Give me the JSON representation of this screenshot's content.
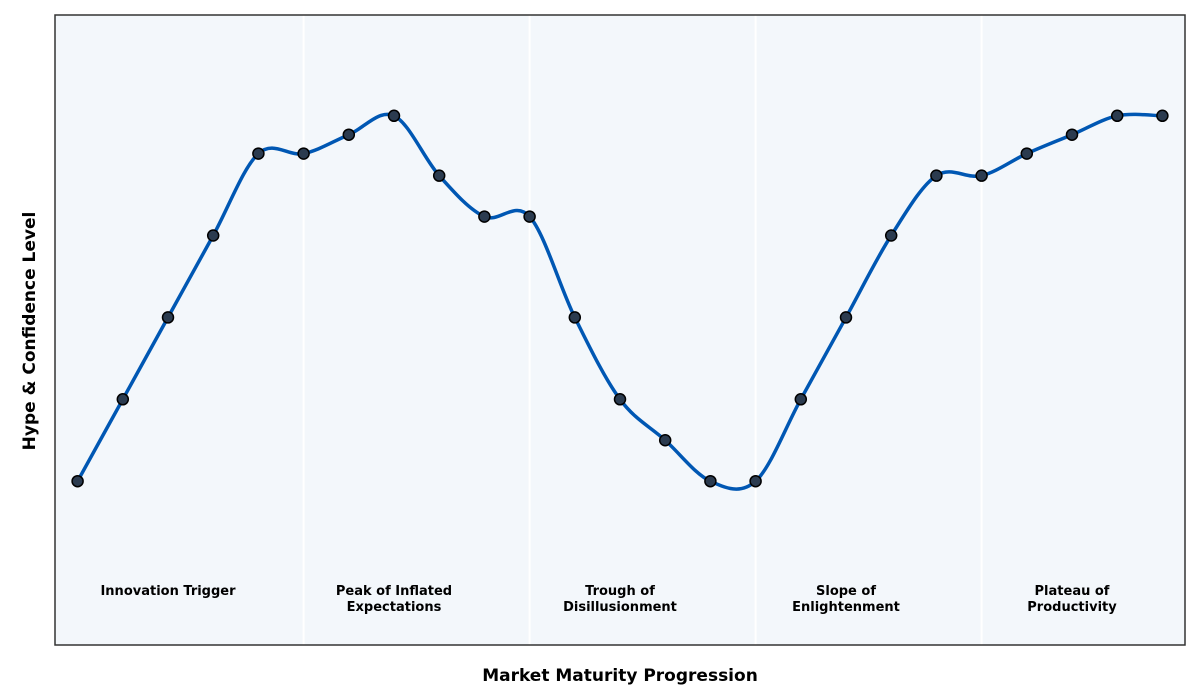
{
  "chart_data": {
    "type": "line",
    "title": "",
    "xlabel": "Market Maturity Progression",
    "ylabel": "Hype & Confidence Level",
    "x": [
      0,
      1,
      2,
      3,
      4,
      5,
      6,
      7,
      8,
      9,
      10,
      11,
      12,
      13,
      14,
      15,
      16,
      17,
      18,
      19,
      20,
      21,
      22,
      23,
      24
    ],
    "ylim": [
      0,
      100
    ],
    "xlim": [
      -0.5,
      24.5
    ],
    "series": [
      {
        "values": [
          26,
          39,
          52,
          65,
          78,
          78,
          81,
          84,
          74.5,
          68,
          68,
          52,
          39,
          32.5,
          26,
          26,
          39,
          52,
          65,
          74.5,
          74.5,
          78,
          81,
          84,
          84
        ],
        "color": "#0057b3",
        "marker_fill": "#2b3b4f",
        "marker_edge": "#000000"
      }
    ],
    "phases": [
      {
        "label_lines": [
          "Innovation Trigger"
        ],
        "x_start": -0.5,
        "x_end": 5,
        "label_x": 2
      },
      {
        "label_lines": [
          "Peak of Inflated",
          "Expectations"
        ],
        "x_start": 5,
        "x_end": 10,
        "label_x": 7
      },
      {
        "label_lines": [
          "Trough of",
          "Disillusionment"
        ],
        "x_start": 10,
        "x_end": 15,
        "label_x": 12
      },
      {
        "label_lines": [
          "Slope of",
          "Enlightenment"
        ],
        "x_start": 15,
        "x_end": 20,
        "label_x": 17
      },
      {
        "label_lines": [
          "Plateau of",
          "Productivity"
        ],
        "x_start": 20,
        "x_end": 24.5,
        "label_x": 22
      }
    ],
    "grid": false,
    "background_color": "#f3f7fb",
    "divider_color": "#ffffff",
    "frame_color": "#333333"
  }
}
